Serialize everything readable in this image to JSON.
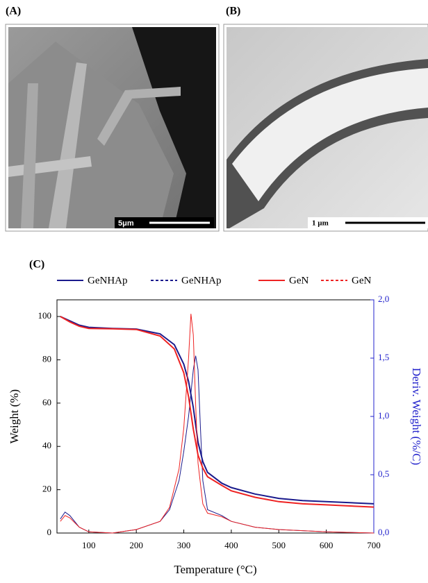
{
  "panels": {
    "a_label": "(A)",
    "a_scale": "5μm",
    "b_label": "(B)",
    "b_scale": "1 µm",
    "c_label": "(C)"
  },
  "chart_data": {
    "type": "line",
    "x_label": "Temperature (°C)",
    "y_label": "Weight (%)",
    "y2_label": "Deriv. Weight (%/C)",
    "xlim": [
      33,
      700
    ],
    "xticks": [
      100,
      200,
      300,
      400,
      500,
      600,
      700
    ],
    "ylim": [
      0,
      107.7
    ],
    "yticks": [
      0,
      20,
      40,
      60,
      80,
      100
    ],
    "y2lim": [
      0,
      2.0
    ],
    "y2ticks": [
      {
        "value": 0,
        "label": "0,0"
      },
      {
        "value": 0.5,
        "label": "0,5"
      },
      {
        "value": 1.0,
        "label": "1,0"
      },
      {
        "value": 1.5,
        "label": "1,5"
      },
      {
        "value": 2.0,
        "label": "2,0"
      }
    ],
    "y2_color": "#2222cc",
    "series": [
      {
        "name": "GeNHAp",
        "color": "#1a1a8c",
        "dash": false,
        "x": [
          40,
          60,
          80,
          100,
          150,
          200,
          250,
          280,
          300,
          310,
          320,
          330,
          340,
          350,
          380,
          400,
          450,
          500,
          550,
          600,
          650,
          700
        ],
        "values": [
          100,
          98,
          96,
          95,
          94.5,
          94.2,
          92,
          87,
          78,
          70,
          58,
          42,
          33,
          28,
          23,
          21,
          18,
          16,
          15,
          14.5,
          14,
          13.5
        ]
      },
      {
        "name": "GeNHAp",
        "color": "#1a1a8c",
        "dash": true,
        "axis": "y2",
        "x": [
          40,
          50,
          60,
          80,
          100,
          150,
          200,
          250,
          270,
          290,
          300,
          310,
          320,
          325,
          330,
          335,
          340,
          350,
          380,
          400,
          450,
          500,
          600,
          700
        ],
        "values": [
          0.12,
          0.18,
          0.15,
          0.05,
          0.01,
          0,
          0.03,
          0.1,
          0.2,
          0.45,
          0.7,
          1.0,
          1.4,
          1.52,
          1.4,
          0.9,
          0.45,
          0.2,
          0.15,
          0.1,
          0.05,
          0.03,
          0.01,
          0
        ]
      },
      {
        "name": "GeN",
        "color": "#ee2222",
        "dash": false,
        "x": [
          40,
          60,
          80,
          100,
          150,
          200,
          250,
          280,
          300,
          310,
          320,
          330,
          340,
          350,
          380,
          400,
          450,
          500,
          550,
          600,
          650,
          700
        ],
        "values": [
          100,
          97.5,
          95.5,
          94.5,
          94.3,
          94,
          91,
          85,
          74,
          63,
          48,
          36,
          30,
          26,
          22,
          19.5,
          16.5,
          14.5,
          13.5,
          13,
          12.5,
          12
        ]
      },
      {
        "name": "GeN",
        "color": "#ee2222",
        "dash": true,
        "axis": "y2",
        "x": [
          40,
          50,
          60,
          80,
          100,
          150,
          200,
          250,
          270,
          290,
          300,
          310,
          315,
          320,
          325,
          330,
          340,
          350,
          380,
          400,
          450,
          500,
          600,
          700
        ],
        "values": [
          0.1,
          0.15,
          0.13,
          0.05,
          0.01,
          0,
          0.03,
          0.1,
          0.22,
          0.55,
          0.9,
          1.5,
          1.88,
          1.7,
          1.1,
          0.6,
          0.25,
          0.17,
          0.14,
          0.1,
          0.05,
          0.03,
          0.01,
          0
        ]
      }
    ]
  }
}
